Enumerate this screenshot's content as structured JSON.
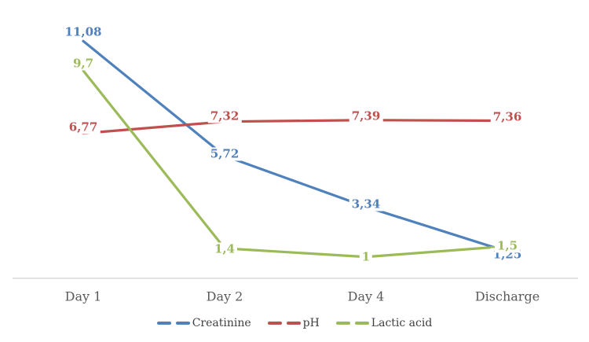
{
  "chart_data": {
    "type": "line",
    "title": "",
    "xlabel": "",
    "ylabel": "",
    "categories": [
      "Day 1",
      "Day 2",
      "Day 4",
      "Discharge"
    ],
    "series": [
      {
        "name": "Creatinine",
        "color": "#4F81BD",
        "values": [
          11.08,
          5.72,
          3.34,
          1.25
        ],
        "labels": [
          "11,08",
          "5,72",
          "3,34",
          "1,25"
        ],
        "label_dy": [
          -11,
          -2,
          -3,
          4
        ]
      },
      {
        "name": "pH",
        "color": "#C0504D",
        "values": [
          6.77,
          7.32,
          7.39,
          7.36
        ],
        "labels": [
          "6,77",
          "7,32",
          "7,39",
          "7,36"
        ],
        "label_dy": [
          -8,
          -7,
          -5,
          -5
        ]
      },
      {
        "name": "Lactic acid",
        "color": "#9BBB59",
        "values": [
          9.7,
          1.4,
          1,
          1.5
        ],
        "labels": [
          "9,7",
          "1,4",
          "1",
          "1,5"
        ],
        "label_dy": [
          -9,
          1,
          0,
          0
        ]
      }
    ],
    "ylim": [
      0,
      13
    ],
    "grid": false,
    "y_axis_visible": false,
    "x_axis_line": true,
    "legend_position": "bottom",
    "legend_marker": "double-dash",
    "decimal_separator": ",",
    "colors": {
      "background": "#FFFFFF",
      "axis_line": "#D9D9D9",
      "axis_text": "#595959",
      "legend_text": "#404040"
    }
  }
}
